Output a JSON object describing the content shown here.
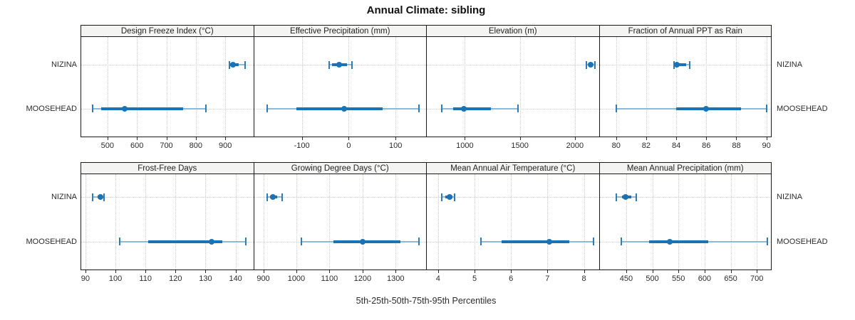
{
  "title": "Annual Climate: sibling",
  "caption": "5th-25th-50th-75th-95th Percentiles",
  "sites": [
    "NIZINA",
    "MOOSEHEAD"
  ],
  "colors": {
    "median": "#1b72b4",
    "box": "#1b72b4",
    "cap": "#2d7cb8",
    "whisker": "#8fb9d9",
    "grid": "#cdcdcd",
    "panel_border": "#1a1a1a",
    "header_bg": "#f4f4f2",
    "text": "#2b2b2b"
  },
  "chart_data": {
    "type": "percentile_dotplot",
    "orientation": "horizontal",
    "grid": "dotted",
    "legend_position": "none",
    "note": "dot = 50th percentile, thick bar = 25th-75th, thin whisker with caps = 5th-95th",
    "panels": [
      {
        "title": "Design Freeze Index (°C)",
        "row": 0,
        "xlim": [
          411,
          995
        ],
        "ticks": [
          500,
          600,
          700,
          800,
          900
        ],
        "series": [
          {
            "name": "NIZINA",
            "p5": 915,
            "p25": 917,
            "p50": 926,
            "p75": 945,
            "p95": 966
          },
          {
            "name": "MOOSEHEAD",
            "p5": 449,
            "p25": 479,
            "p50": 559,
            "p75": 756,
            "p95": 833
          }
        ]
      },
      {
        "title": "Effective Precipitation (mm)",
        "row": 0,
        "xlim": [
          -202,
          165
        ],
        "ticks": [
          -100,
          0,
          100
        ],
        "series": [
          {
            "name": "NIZINA",
            "p5": -42,
            "p25": -35,
            "p50": -21,
            "p75": -3,
            "p95": 7
          },
          {
            "name": "MOOSEHEAD",
            "p5": -174,
            "p25": -112,
            "p50": -10,
            "p75": 72,
            "p95": 150
          }
        ]
      },
      {
        "title": "Elevation (m)",
        "row": 0,
        "xlim": [
          654,
          2218
        ],
        "ticks": [
          1000,
          1500,
          2000
        ],
        "series": [
          {
            "name": "NIZINA",
            "p5": 2103,
            "p25": 2125,
            "p50": 2145,
            "p75": 2165,
            "p95": 2185
          },
          {
            "name": "MOOSEHEAD",
            "p5": 789,
            "p25": 892,
            "p50": 990,
            "p75": 1236,
            "p95": 1483
          }
        ]
      },
      {
        "title": "Fraction of Annual PPT as Rain",
        "row": 0,
        "xlim": [
          78.9,
          90.3
        ],
        "ticks": [
          80,
          82,
          84,
          86,
          88,
          90
        ],
        "series": [
          {
            "name": "NIZINA",
            "p5": 83.85,
            "p25": 83.9,
            "p50": 84.05,
            "p75": 84.65,
            "p95": 84.9
          },
          {
            "name": "MOOSEHEAD",
            "p5": 80.0,
            "p25": 84.0,
            "p50": 86.0,
            "p75": 88.3,
            "p95": 90.0
          }
        ]
      },
      {
        "title": "Frost-Free Days",
        "row": 1,
        "xlim": [
          88.6,
          145.9
        ],
        "ticks": [
          90,
          100,
          110,
          120,
          130,
          140
        ],
        "series": [
          {
            "name": "NIZINA",
            "p5": 92.4,
            "p25": 94.0,
            "p50": 95.0,
            "p75": 95.6,
            "p95": 96.2
          },
          {
            "name": "MOOSEHEAD",
            "p5": 101.5,
            "p25": 111.0,
            "p50": 132.0,
            "p75": 135.5,
            "p95": 143.5
          }
        ]
      },
      {
        "title": "Growing Degree Days (°C)",
        "row": 1,
        "xlim": [
          872,
          1392
        ],
        "ticks": [
          900,
          1000,
          1100,
          1200,
          1300
        ],
        "series": [
          {
            "name": "NIZINA",
            "p5": 912,
            "p25": 920,
            "p50": 929,
            "p75": 941,
            "p95": 956
          },
          {
            "name": "MOOSEHEAD",
            "p5": 1016,
            "p25": 1112,
            "p50": 1200,
            "p75": 1314,
            "p95": 1371
          }
        ]
      },
      {
        "title": "Mean Annual Air Temperature (°C)",
        "row": 1,
        "xlim": [
          3.69,
          8.41
        ],
        "ticks": [
          4,
          5,
          6,
          7,
          8
        ],
        "series": [
          {
            "name": "NIZINA",
            "p5": 4.1,
            "p25": 4.2,
            "p50": 4.32,
            "p75": 4.4,
            "p95": 4.45
          },
          {
            "name": "MOOSEHEAD",
            "p5": 5.17,
            "p25": 5.74,
            "p50": 7.05,
            "p75": 7.59,
            "p95": 8.27
          }
        ]
      },
      {
        "title": "Mean Annual Precipitation (mm)",
        "row": 1,
        "xlim": [
          399,
          727
        ],
        "ticks": [
          450,
          500,
          550,
          600,
          650,
          700
        ],
        "series": [
          {
            "name": "NIZINA",
            "p5": 431,
            "p25": 442,
            "p50": 449,
            "p75": 460,
            "p95": 469
          },
          {
            "name": "MOOSEHEAD",
            "p5": 441,
            "p25": 494,
            "p50": 533,
            "p75": 607,
            "p95": 720
          }
        ]
      }
    ]
  }
}
